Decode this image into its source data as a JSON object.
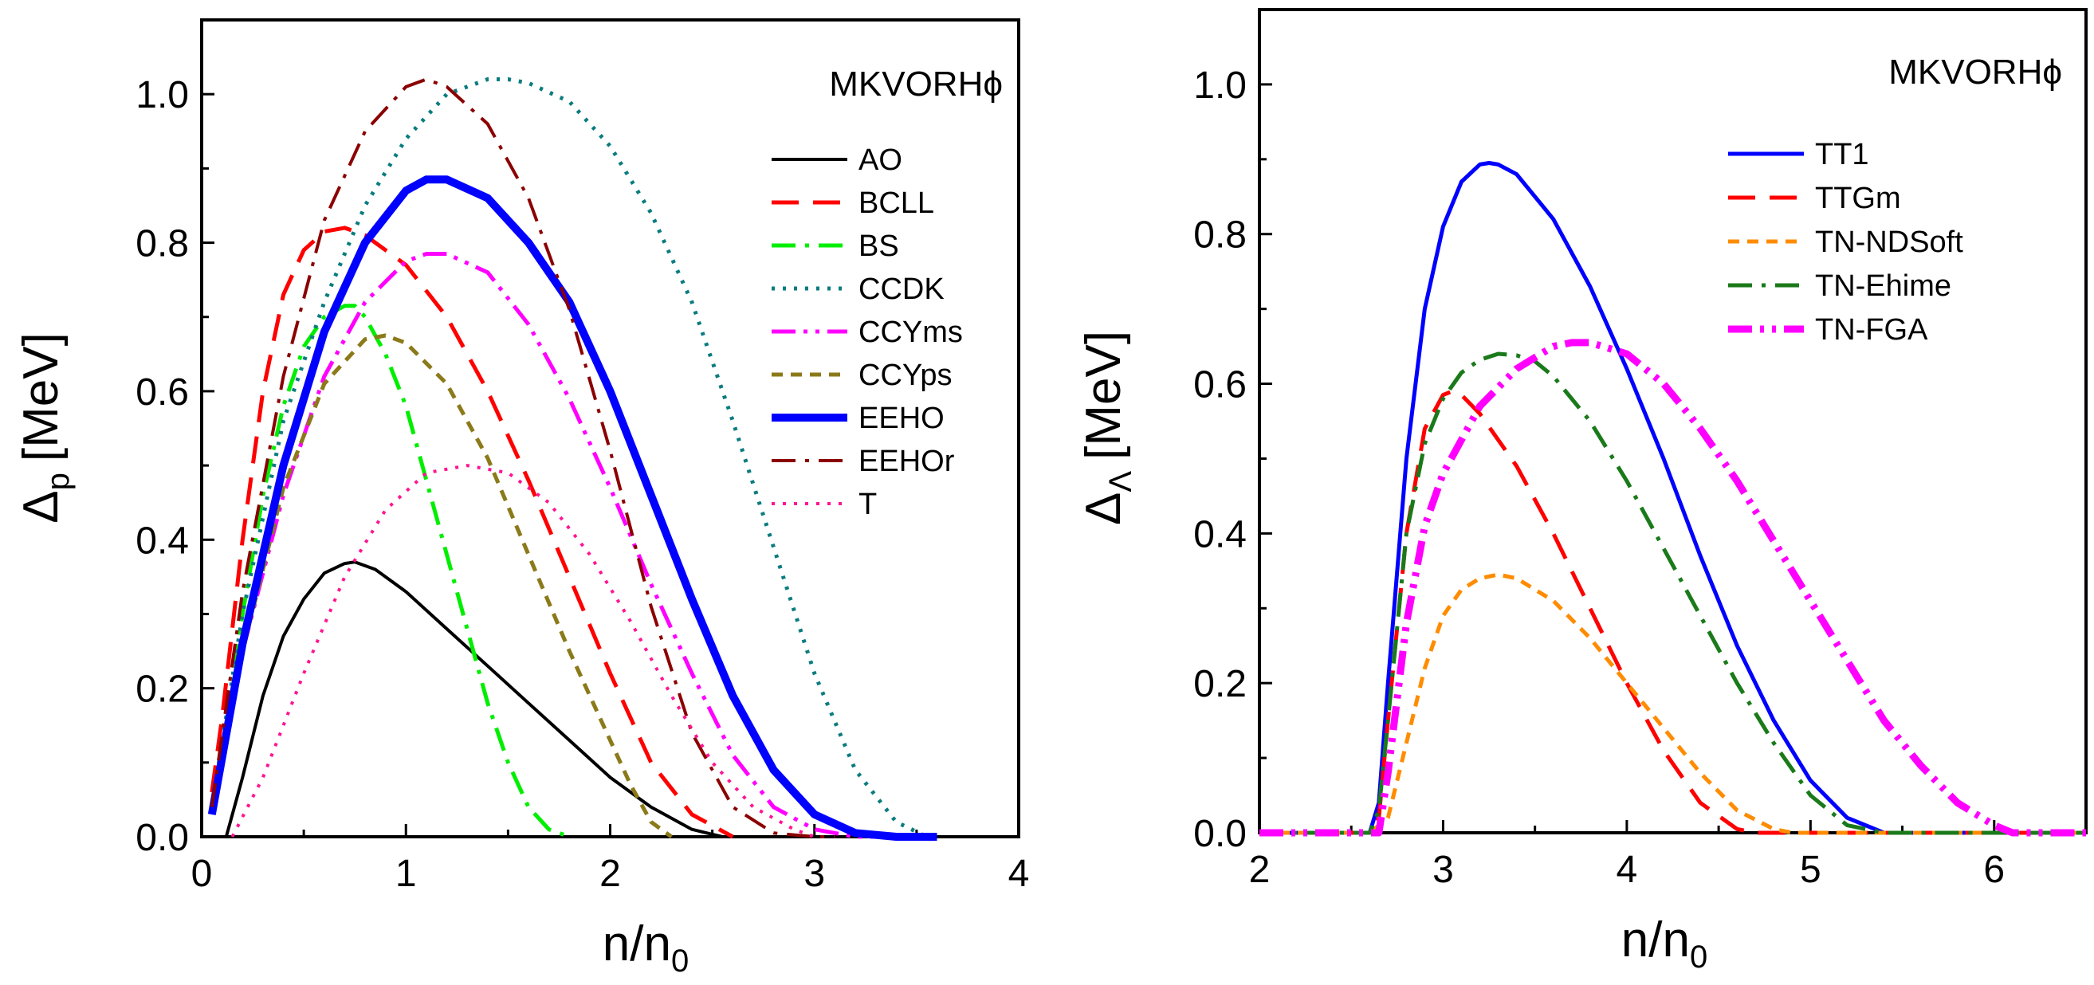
{
  "chart_data": [
    {
      "type": "line",
      "title": "MKVORHϕ",
      "xlabel": "n/n",
      "xlabel_sub": "0",
      "ylabel": "Δ",
      "ylabel_sub": "p",
      "ylabel_unit": "[MeV]",
      "xlim": [
        0,
        4
      ],
      "ylim": [
        0,
        1.1
      ],
      "xticks": [
        "0",
        "1",
        "2",
        "3",
        "4"
      ],
      "yticks": [
        "0.0",
        "0.2",
        "0.4",
        "0.6",
        "0.8",
        "1.0"
      ],
      "series": [
        {
          "name": "AO",
          "color": "#000000",
          "dash": "solid",
          "width": 4,
          "x": [
            0.12,
            0.2,
            0.3,
            0.4,
            0.5,
            0.6,
            0.7,
            0.75,
            0.85,
            1.0,
            1.2,
            1.4,
            1.6,
            1.8,
            2.0,
            2.2,
            2.4,
            2.55
          ],
          "y": [
            0,
            0.08,
            0.19,
            0.27,
            0.32,
            0.355,
            0.368,
            0.37,
            0.36,
            0.33,
            0.28,
            0.23,
            0.18,
            0.13,
            0.08,
            0.04,
            0.01,
            0
          ]
        },
        {
          "name": "BCLL",
          "color": "#ff0000",
          "dash": "long",
          "width": 5,
          "x": [
            0.05,
            0.1,
            0.2,
            0.3,
            0.4,
            0.5,
            0.6,
            0.7,
            0.8,
            1.0,
            1.2,
            1.4,
            1.6,
            1.8,
            2.0,
            2.2,
            2.4,
            2.6
          ],
          "y": [
            0.06,
            0.16,
            0.4,
            0.6,
            0.73,
            0.79,
            0.815,
            0.82,
            0.81,
            0.77,
            0.7,
            0.6,
            0.48,
            0.35,
            0.22,
            0.1,
            0.03,
            0
          ]
        },
        {
          "name": "BS",
          "color": "#00ee00",
          "dash": "dashdot",
          "width": 5,
          "x": [
            0.05,
            0.1,
            0.2,
            0.3,
            0.4,
            0.5,
            0.6,
            0.7,
            0.75,
            0.8,
            0.9,
            1.0,
            1.1,
            1.2,
            1.3,
            1.4,
            1.5,
            1.6,
            1.7,
            1.8
          ],
          "y": [
            0.04,
            0.12,
            0.3,
            0.46,
            0.58,
            0.66,
            0.7,
            0.715,
            0.715,
            0.7,
            0.65,
            0.58,
            0.48,
            0.38,
            0.28,
            0.18,
            0.1,
            0.04,
            0.01,
            0
          ]
        },
        {
          "name": "CCDK",
          "color": "#0a7c80",
          "dash": "dotted",
          "width": 5,
          "x": [
            0.05,
            0.2,
            0.4,
            0.6,
            0.8,
            1.0,
            1.2,
            1.4,
            1.5,
            1.6,
            1.8,
            2.0,
            2.2,
            2.4,
            2.6,
            2.8,
            3.0,
            3.2,
            3.4,
            3.55
          ],
          "y": [
            0.04,
            0.3,
            0.56,
            0.72,
            0.85,
            0.94,
            1.0,
            1.02,
            1.02,
            1.015,
            0.99,
            0.93,
            0.84,
            0.72,
            0.56,
            0.39,
            0.22,
            0.09,
            0.02,
            0
          ]
        },
        {
          "name": "CCYms",
          "color": "#ff00ff",
          "dash": "dashdotdot",
          "width": 5,
          "x": [
            0.05,
            0.2,
            0.4,
            0.6,
            0.8,
            1.0,
            1.1,
            1.2,
            1.4,
            1.6,
            1.8,
            2.0,
            2.2,
            2.4,
            2.6,
            2.8,
            3.0,
            3.2,
            3.4
          ],
          "y": [
            0.03,
            0.25,
            0.46,
            0.62,
            0.72,
            0.775,
            0.785,
            0.785,
            0.76,
            0.69,
            0.59,
            0.47,
            0.34,
            0.22,
            0.11,
            0.04,
            0.01,
            0,
            0
          ]
        },
        {
          "name": "CCYps",
          "color": "#8b7a1a",
          "dash": "short",
          "width": 5,
          "x": [
            0.05,
            0.2,
            0.4,
            0.6,
            0.8,
            0.9,
            1.0,
            1.2,
            1.4,
            1.6,
            1.8,
            2.0,
            2.1,
            2.2,
            2.3
          ],
          "y": [
            0.03,
            0.25,
            0.47,
            0.61,
            0.67,
            0.675,
            0.665,
            0.61,
            0.51,
            0.38,
            0.25,
            0.13,
            0.07,
            0.02,
            0
          ]
        },
        {
          "name": "EEHO",
          "color": "#0000ff",
          "dash": "solid",
          "width": 10,
          "x": [
            0.05,
            0.2,
            0.4,
            0.6,
            0.8,
            1.0,
            1.1,
            1.2,
            1.4,
            1.6,
            1.8,
            2.0,
            2.2,
            2.4,
            2.6,
            2.8,
            3.0,
            3.2,
            3.4,
            3.6
          ],
          "y": [
            0.03,
            0.26,
            0.5,
            0.68,
            0.8,
            0.87,
            0.885,
            0.885,
            0.86,
            0.8,
            0.72,
            0.6,
            0.46,
            0.32,
            0.19,
            0.09,
            0.03,
            0.005,
            0,
            0
          ]
        },
        {
          "name": "EEHOr",
          "color": "#8b0000",
          "dash": "dashdot",
          "width": 4,
          "x": [
            0.05,
            0.2,
            0.4,
            0.6,
            0.8,
            1.0,
            1.1,
            1.2,
            1.4,
            1.6,
            1.8,
            2.0,
            2.2,
            2.4,
            2.6,
            2.8,
            3.0,
            3.1
          ],
          "y": [
            0.04,
            0.33,
            0.62,
            0.83,
            0.95,
            1.01,
            1.02,
            1.01,
            0.96,
            0.86,
            0.71,
            0.52,
            0.31,
            0.14,
            0.04,
            0.005,
            0,
            0
          ]
        },
        {
          "name": "T",
          "color": "#ff1493",
          "dash": "dotted",
          "width": 4,
          "x": [
            0.15,
            0.3,
            0.5,
            0.7,
            0.9,
            1.1,
            1.3,
            1.5,
            1.7,
            1.9,
            2.1,
            2.3,
            2.5,
            2.7,
            2.9,
            3.0
          ],
          "y": [
            0,
            0.08,
            0.22,
            0.35,
            0.44,
            0.49,
            0.5,
            0.49,
            0.45,
            0.38,
            0.29,
            0.19,
            0.1,
            0.04,
            0.01,
            0
          ]
        }
      ]
    },
    {
      "type": "line",
      "title": "MKVORHϕ",
      "xlabel": "n/n",
      "xlabel_sub": "0",
      "ylabel": "Δ",
      "ylabel_sub": "Λ",
      "ylabel_unit": "[MeV]",
      "xlim": [
        2,
        6.5
      ],
      "ylim": [
        0,
        1.1
      ],
      "xticks": [
        "2",
        "3",
        "4",
        "5",
        "6"
      ],
      "yticks": [
        "0.0",
        "0.2",
        "0.4",
        "0.6",
        "0.8",
        "1.0"
      ],
      "series": [
        {
          "name": "TT1",
          "color": "#0000ff",
          "dash": "solid",
          "width": 5,
          "x": [
            2.0,
            2.6,
            2.65,
            2.7,
            2.8,
            2.9,
            3.0,
            3.1,
            3.2,
            3.25,
            3.3,
            3.4,
            3.6,
            3.8,
            4.0,
            4.2,
            4.4,
            4.6,
            4.8,
            5.0,
            5.2,
            5.4,
            5.6,
            6.5
          ],
          "y": [
            0,
            0,
            0.04,
            0.2,
            0.5,
            0.7,
            0.81,
            0.87,
            0.893,
            0.895,
            0.893,
            0.88,
            0.82,
            0.73,
            0.62,
            0.5,
            0.37,
            0.25,
            0.15,
            0.07,
            0.02,
            0,
            0,
            0
          ]
        },
        {
          "name": "TTGm",
          "color": "#ff0000",
          "dash": "long",
          "width": 5,
          "x": [
            2.0,
            2.6,
            2.65,
            2.7,
            2.8,
            2.9,
            3.0,
            3.05,
            3.1,
            3.2,
            3.4,
            3.6,
            3.8,
            4.0,
            4.2,
            4.4,
            4.6,
            4.7,
            6.5
          ],
          "y": [
            0,
            0,
            0.02,
            0.15,
            0.4,
            0.54,
            0.585,
            0.59,
            0.585,
            0.56,
            0.49,
            0.4,
            0.3,
            0.2,
            0.11,
            0.04,
            0.005,
            0,
            0
          ]
        },
        {
          "name": "TN-NDSoft",
          "color": "#ff8c00",
          "dash": "short",
          "width": 5,
          "x": [
            2.0,
            2.6,
            2.7,
            2.8,
            2.9,
            3.0,
            3.1,
            3.2,
            3.3,
            3.4,
            3.6,
            3.8,
            4.0,
            4.2,
            4.4,
            4.6,
            4.8,
            4.9,
            6.5
          ],
          "y": [
            0,
            0,
            0.02,
            0.12,
            0.22,
            0.29,
            0.325,
            0.34,
            0.345,
            0.34,
            0.31,
            0.26,
            0.2,
            0.14,
            0.08,
            0.03,
            0.005,
            0,
            0
          ]
        },
        {
          "name": "TN-Ehime",
          "color": "#1a7a1a",
          "dash": "dashdot",
          "width": 5,
          "x": [
            2.0,
            2.6,
            2.65,
            2.7,
            2.8,
            2.9,
            3.0,
            3.1,
            3.2,
            3.3,
            3.4,
            3.5,
            3.6,
            3.8,
            4.0,
            4.2,
            4.4,
            4.6,
            4.8,
            5.0,
            5.2,
            5.4,
            6.5
          ],
          "y": [
            0,
            0,
            0.03,
            0.15,
            0.4,
            0.52,
            0.58,
            0.615,
            0.632,
            0.64,
            0.638,
            0.63,
            0.61,
            0.55,
            0.47,
            0.38,
            0.29,
            0.2,
            0.12,
            0.05,
            0.01,
            0,
            0
          ]
        },
        {
          "name": "TN-FGA",
          "color": "#ff00ff",
          "dash": "dashdotdot",
          "width": 9,
          "x": [
            2.0,
            2.65,
            2.7,
            2.8,
            2.9,
            3.0,
            3.2,
            3.4,
            3.6,
            3.7,
            3.8,
            4.0,
            4.2,
            4.4,
            4.6,
            4.8,
            5.0,
            5.2,
            5.4,
            5.6,
            5.8,
            6.0,
            6.1,
            6.5
          ],
          "y": [
            0,
            0,
            0.08,
            0.28,
            0.41,
            0.48,
            0.57,
            0.62,
            0.65,
            0.655,
            0.655,
            0.64,
            0.6,
            0.54,
            0.47,
            0.39,
            0.31,
            0.23,
            0.15,
            0.09,
            0.04,
            0.01,
            0,
            0
          ]
        }
      ]
    }
  ]
}
